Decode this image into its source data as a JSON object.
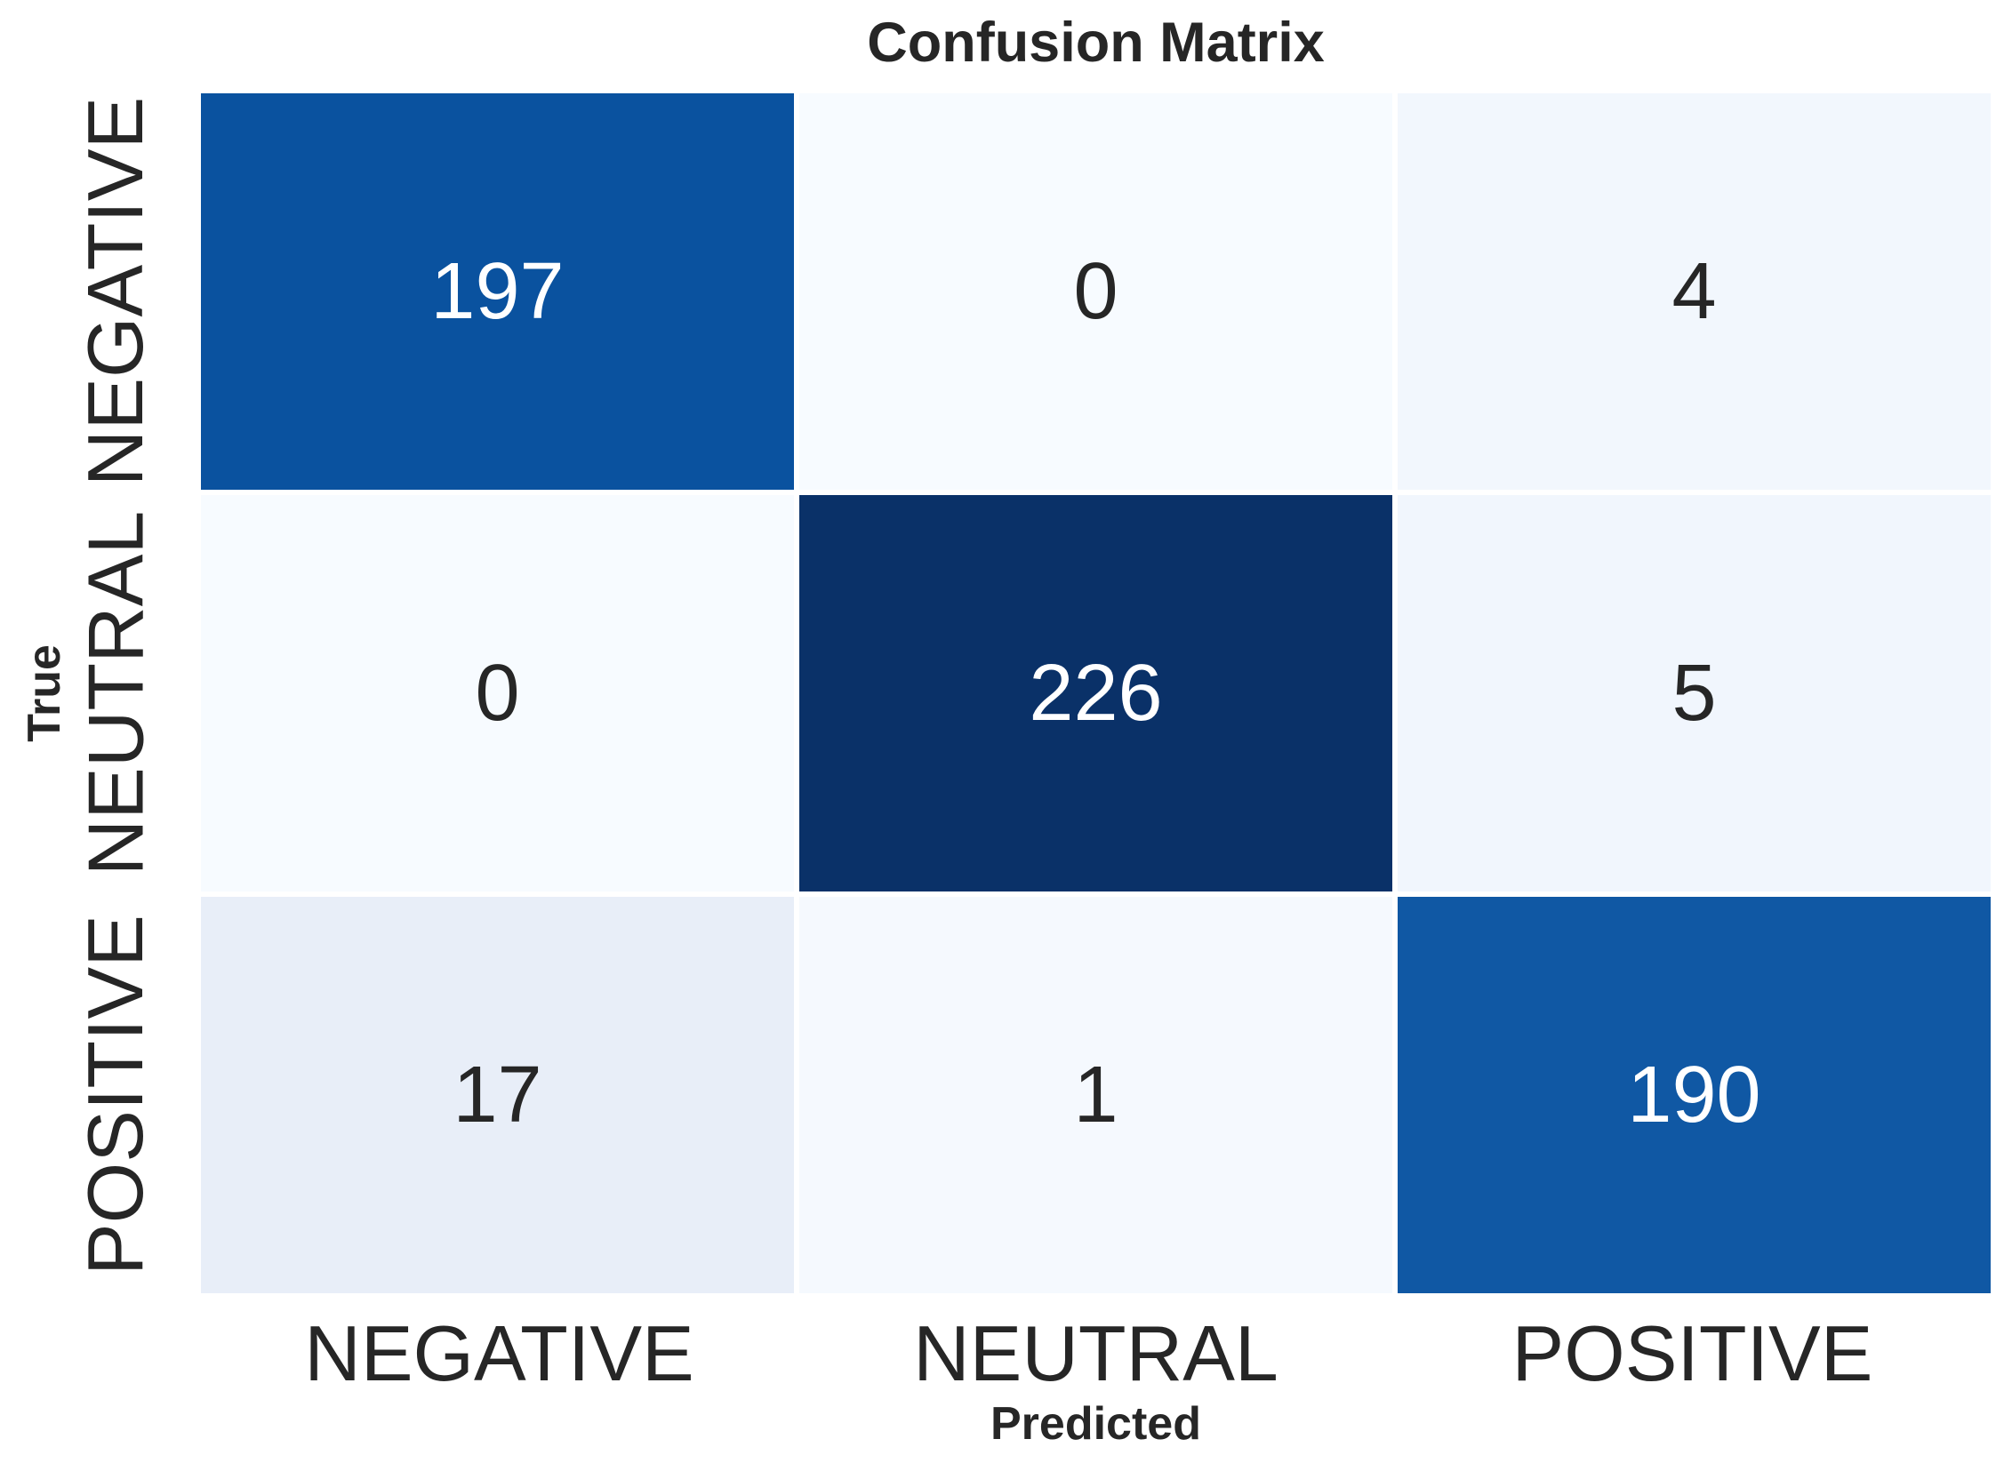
{
  "title": "Confusion Matrix",
  "colors": {
    "background": "#ffffff",
    "text": "#262626",
    "gridline": "#ffffff",
    "colormap_low": "#f7fbff",
    "colormap_high": "#08306b"
  },
  "chart_data": {
    "type": "heatmap",
    "title": "Confusion Matrix",
    "xlabel": "Predicted",
    "ylabel": "True",
    "x_categories": [
      "NEGATIVE",
      "NEUTRAL",
      "POSITIVE"
    ],
    "y_categories": [
      "NEGATIVE",
      "NEUTRAL",
      "POSITIVE"
    ],
    "values": [
      [
        197,
        0,
        4
      ],
      [
        0,
        226,
        5
      ],
      [
        17,
        1,
        190
      ]
    ],
    "colormap": "Blues",
    "vmin": 0,
    "vmax": 226,
    "legend": "none",
    "cells": [
      {
        "row": "NEGATIVE",
        "col": "NEGATIVE",
        "value": "197",
        "bg": "#0a529f",
        "fg": "#ffffff"
      },
      {
        "row": "NEGATIVE",
        "col": "NEUTRAL",
        "value": "0",
        "bg": "#f7fbff",
        "fg": "#262626"
      },
      {
        "row": "NEGATIVE",
        "col": "POSITIVE",
        "value": "4",
        "bg": "#f2f7fd",
        "fg": "#262626"
      },
      {
        "row": "NEUTRAL",
        "col": "NEGATIVE",
        "value": "0",
        "bg": "#f7fbff",
        "fg": "#262626"
      },
      {
        "row": "NEUTRAL",
        "col": "NEUTRAL",
        "value": "226",
        "bg": "#0a3168",
        "fg": "#ffffff"
      },
      {
        "row": "NEUTRAL",
        "col": "POSITIVE",
        "value": "5",
        "bg": "#f1f6fd",
        "fg": "#262626"
      },
      {
        "row": "POSITIVE",
        "col": "NEGATIVE",
        "value": "17",
        "bg": "#e8eef8",
        "fg": "#262626"
      },
      {
        "row": "POSITIVE",
        "col": "NEUTRAL",
        "value": "1",
        "bg": "#f5f9fe",
        "fg": "#262626"
      },
      {
        "row": "POSITIVE",
        "col": "POSITIVE",
        "value": "190",
        "bg": "#1058a4",
        "fg": "#ffffff"
      }
    ]
  }
}
